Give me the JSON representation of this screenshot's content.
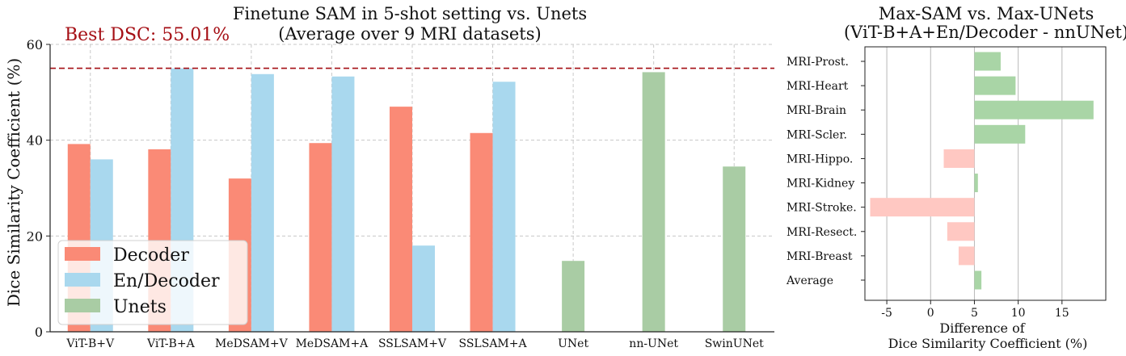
{
  "chart_data": [
    {
      "type": "bar",
      "title": "Finetune SAM in 5-shot setting vs. Unets",
      "subtitle": "(Average over 9 MRI datasets)",
      "xlabel": "",
      "ylabel": "Dice Similarity Coefficient (%)",
      "ylim": [
        0,
        60
      ],
      "yticks": [
        0,
        20,
        40,
        60
      ],
      "grid": true,
      "legend_position": "bottom-left",
      "categories": [
        "ViT-B+V",
        "ViT-B+A",
        "MeDSAM+V",
        "MeDSAM+A",
        "SSLSAM+V",
        "SSLSAM+A",
        "UNet",
        "nn-UNet",
        "SwinUNet"
      ],
      "series": [
        {
          "name": "Decoder",
          "color": "#fa8a76",
          "values": [
            39.2,
            38.1,
            32.0,
            39.4,
            47.0,
            41.5,
            null,
            null,
            null
          ]
        },
        {
          "name": "En/Decoder",
          "color": "#a9d8ee",
          "values": [
            36.0,
            55.0,
            53.8,
            53.3,
            18.0,
            52.2,
            null,
            null,
            null
          ]
        },
        {
          "name": "Unets",
          "color": "#a9cca4",
          "values": [
            null,
            null,
            null,
            null,
            null,
            null,
            14.8,
            54.2,
            34.5
          ]
        }
      ],
      "reference_line": {
        "value": 55.01,
        "label": "Best DSC: 55.01%",
        "color": "#a50f15"
      }
    },
    {
      "type": "bar",
      "orientation": "horizontal",
      "title": "Max-SAM vs. Max-UNets",
      "subtitle": "(ViT-B+A+En/Decoder - nnUNet)",
      "xlabel": "Difference of",
      "xlabel2": "Dice Similarity Coefficient (%)",
      "xlim": [
        -7.5,
        20
      ],
      "xticks": [
        -5,
        0,
        5,
        10,
        15
      ],
      "xtick_labels": [
        "-5",
        "0",
        "5",
        "10",
        "15"
      ],
      "baseline": 5,
      "positive_color": "#a9d5a6",
      "negative_color": "#ffc8c2",
      "categories": [
        "MRI-Prost.",
        "MRI-Heart",
        "MRI-Brain",
        "MRI-Scler.",
        "MRI-Hippo.",
        "MRI-Kidney",
        "MRI-Stroke.",
        "MRI-Resect.",
        "MRI-Breast",
        "Average"
      ],
      "values": [
        8.0,
        9.7,
        18.6,
        10.8,
        1.5,
        5.4,
        -6.9,
        1.9,
        3.2,
        5.8
      ]
    }
  ]
}
